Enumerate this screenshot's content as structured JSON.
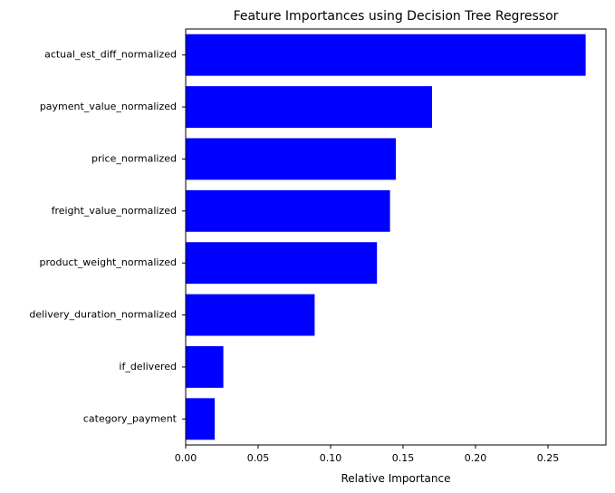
{
  "chart_data": {
    "type": "bar",
    "orientation": "horizontal",
    "title": "Feature Importances using Decision Tree Regressor",
    "xlabel": "Relative Importance",
    "ylabel": "",
    "categories": [
      "actual_est_diff_normalized",
      "payment_value_normalized",
      "price_normalized",
      "freight_value_normalized",
      "product_weight_normalized",
      "delivery_duration_normalized",
      "if_delivered",
      "category_payment"
    ],
    "values": [
      0.276,
      0.17,
      0.145,
      0.141,
      0.132,
      0.089,
      0.026,
      0.02
    ],
    "xlim": [
      0.0,
      0.29
    ],
    "xticks": [
      "0.00",
      "0.05",
      "0.10",
      "0.15",
      "0.20",
      "0.25"
    ],
    "bar_color": "#0000ff",
    "grid": false,
    "legend": false
  }
}
